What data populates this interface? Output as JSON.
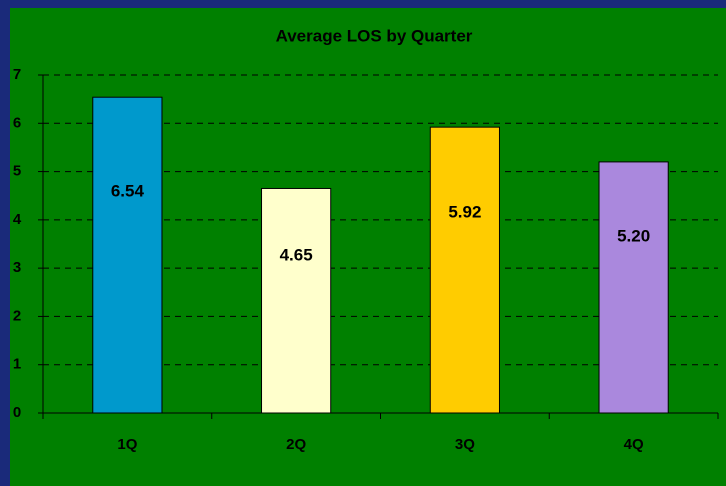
{
  "chart_data": {
    "type": "bar",
    "title": "Average LOS by Quarter",
    "categories": [
      "1Q",
      "2Q",
      "3Q",
      "4Q"
    ],
    "values": [
      6.54,
      4.65,
      5.92,
      5.2
    ],
    "value_labels": [
      "6.54",
      "4.65",
      "5.92",
      "5.20"
    ],
    "colors": [
      "#0099cc",
      "#ffffcc",
      "#ffcc00",
      "#aa88dd"
    ],
    "ylim": [
      0,
      7
    ],
    "yticks": [
      0,
      1,
      2,
      3,
      4,
      5,
      6,
      7
    ],
    "grid": true
  }
}
